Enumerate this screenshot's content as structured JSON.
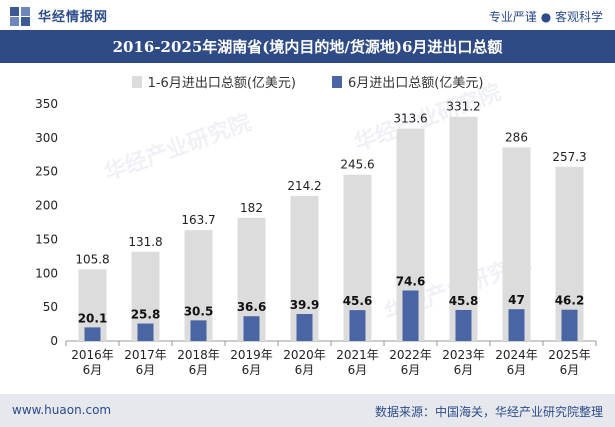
{
  "header": {
    "brand": "华经情报网",
    "tagline": "专业严谨 ● 客观科学"
  },
  "chart_data": {
    "type": "bar",
    "title": "2016-2025年湖南省(境内目的地/货源地)6月进出口总额",
    "categories": [
      "2016年\n6月",
      "2017年\n6月",
      "2018年\n6月",
      "2019年\n6月",
      "2020年\n6月",
      "2021年\n6月",
      "2022年\n6月",
      "2023年\n6月",
      "2024年\n6月",
      "2025年\n6月"
    ],
    "series": [
      {
        "name": "1-6月进出口总额(亿美元)",
        "color": "#dcdcdc",
        "values": [
          105.8,
          131.8,
          163.7,
          182,
          214.2,
          245.6,
          313.6,
          331.2,
          286,
          257.3
        ]
      },
      {
        "name": "6月进出口总额(亿美元)",
        "color": "#4a65a4",
        "values": [
          20.1,
          25.8,
          30.5,
          36.6,
          39.9,
          45.6,
          74.6,
          45.8,
          47,
          46.2
        ]
      }
    ],
    "ylim": [
      0,
      350
    ],
    "yticks": [
      0,
      50,
      100,
      150,
      200,
      250,
      300,
      350
    ],
    "legend_position": "top",
    "grid": false
  },
  "watermark": "华经产业研究院",
  "footer": {
    "website": "www.huaon.com",
    "source": "数据来源：中国海关，华经产业研究院整理"
  }
}
